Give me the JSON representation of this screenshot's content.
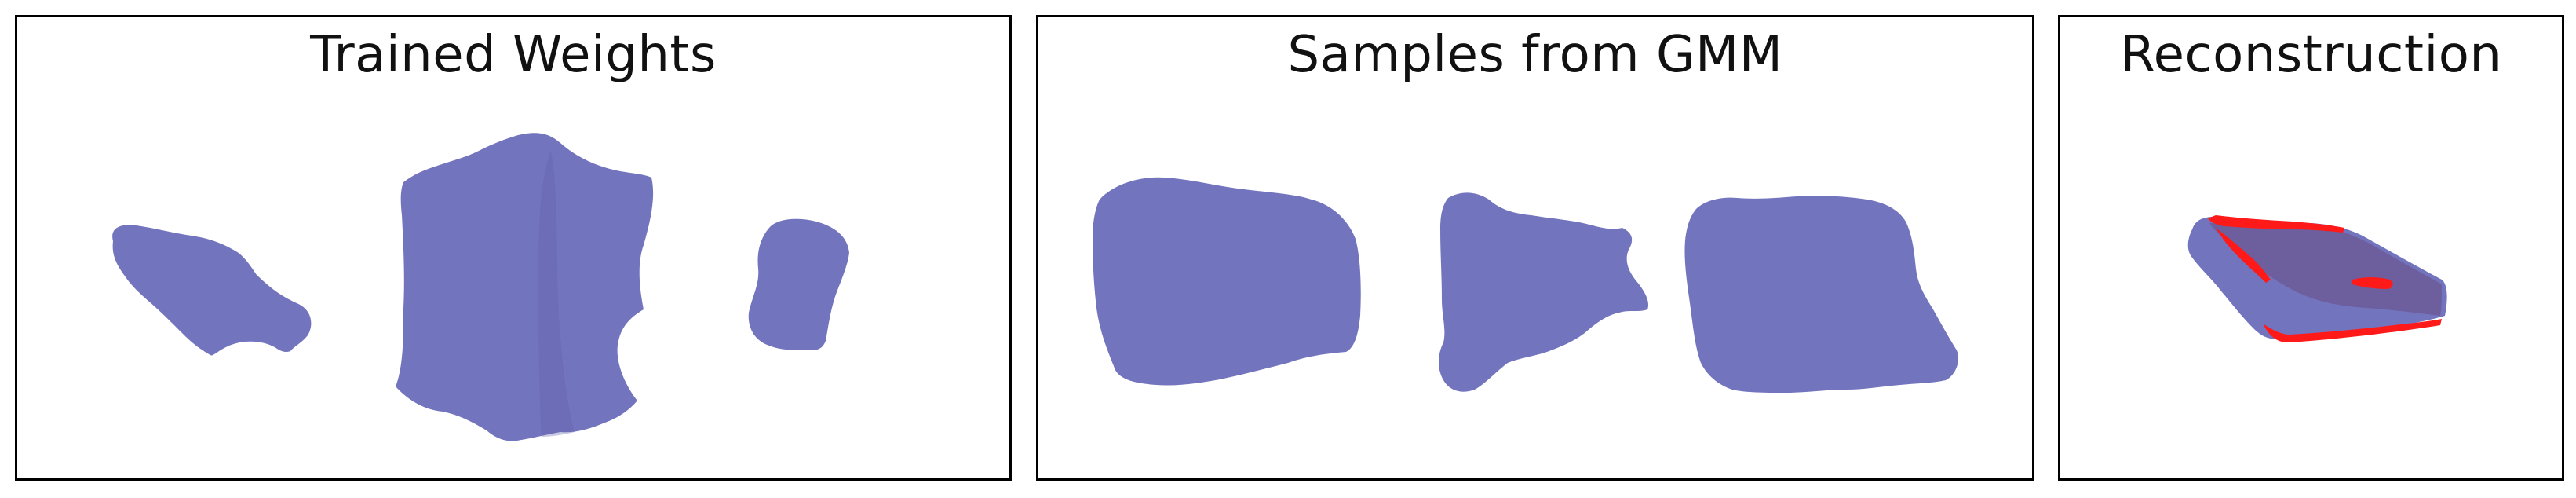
{
  "panels": [
    {
      "title": "Trained Weights"
    },
    {
      "title": "Samples from GMM"
    },
    {
      "title": "Reconstruction"
    }
  ],
  "colors": {
    "shape_fill": "#7374be",
    "shape_shadow": "#5f60a8",
    "highlight": "#ff1a1a",
    "reconstruction_body": "#6c5a98",
    "border": "#000000"
  },
  "shapes": {
    "panel1": [
      "blob-left",
      "blob-center-large",
      "blob-right"
    ],
    "panel2": [
      "blob-left",
      "blob-center",
      "blob-right"
    ],
    "panel3": [
      "reconstructed-box"
    ]
  }
}
